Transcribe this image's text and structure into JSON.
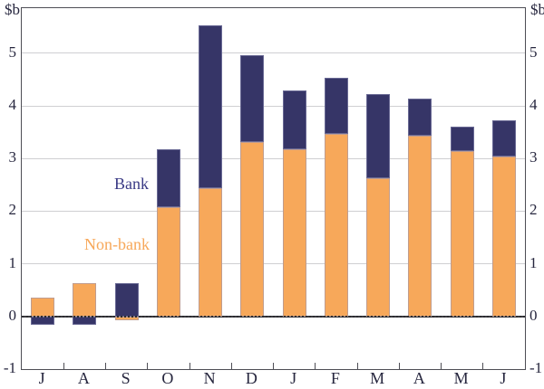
{
  "figure": {
    "unit_label_left": "$b",
    "unit_label_right": "$b",
    "legend": {
      "bank_label": "Bank",
      "non_bank_label": "Non-bank"
    },
    "colors": {
      "bank": "#363567",
      "non_bank": "#F7A85A",
      "gridline": "#cfcfd2",
      "axis_frame": "#4e4e55",
      "text": "#26263e"
    }
  },
  "chart_data": {
    "type": "bar",
    "stacked": true,
    "title": "",
    "xlabel": "",
    "ylabel": "$b",
    "grid": true,
    "legend_position": "inside-left",
    "categories": [
      "J",
      "A",
      "S",
      "O",
      "N",
      "D",
      "J",
      "F",
      "M",
      "A",
      "M",
      "J"
    ],
    "series": [
      {
        "name": "Non-bank",
        "color": "#F7A85A",
        "values": [
          0.35,
          0.64,
          -0.08,
          2.08,
          2.43,
          3.31,
          3.18,
          3.47,
          2.62,
          3.44,
          3.14,
          3.03
        ]
      },
      {
        "name": "Bank",
        "color": "#363567",
        "values": [
          -0.15,
          -0.16,
          0.64,
          1.1,
          3.1,
          1.65,
          1.11,
          1.06,
          1.6,
          0.69,
          0.46,
          0.69
        ]
      }
    ],
    "stack_totals": [
      0.35,
      0.64,
      0.64,
      3.18,
      5.53,
      4.96,
      4.29,
      4.53,
      4.22,
      4.13,
      3.6,
      3.72
    ],
    "ylim": [
      -1,
      5.857
    ],
    "yticks": [
      -1,
      0,
      1,
      2,
      3,
      4,
      5
    ]
  }
}
